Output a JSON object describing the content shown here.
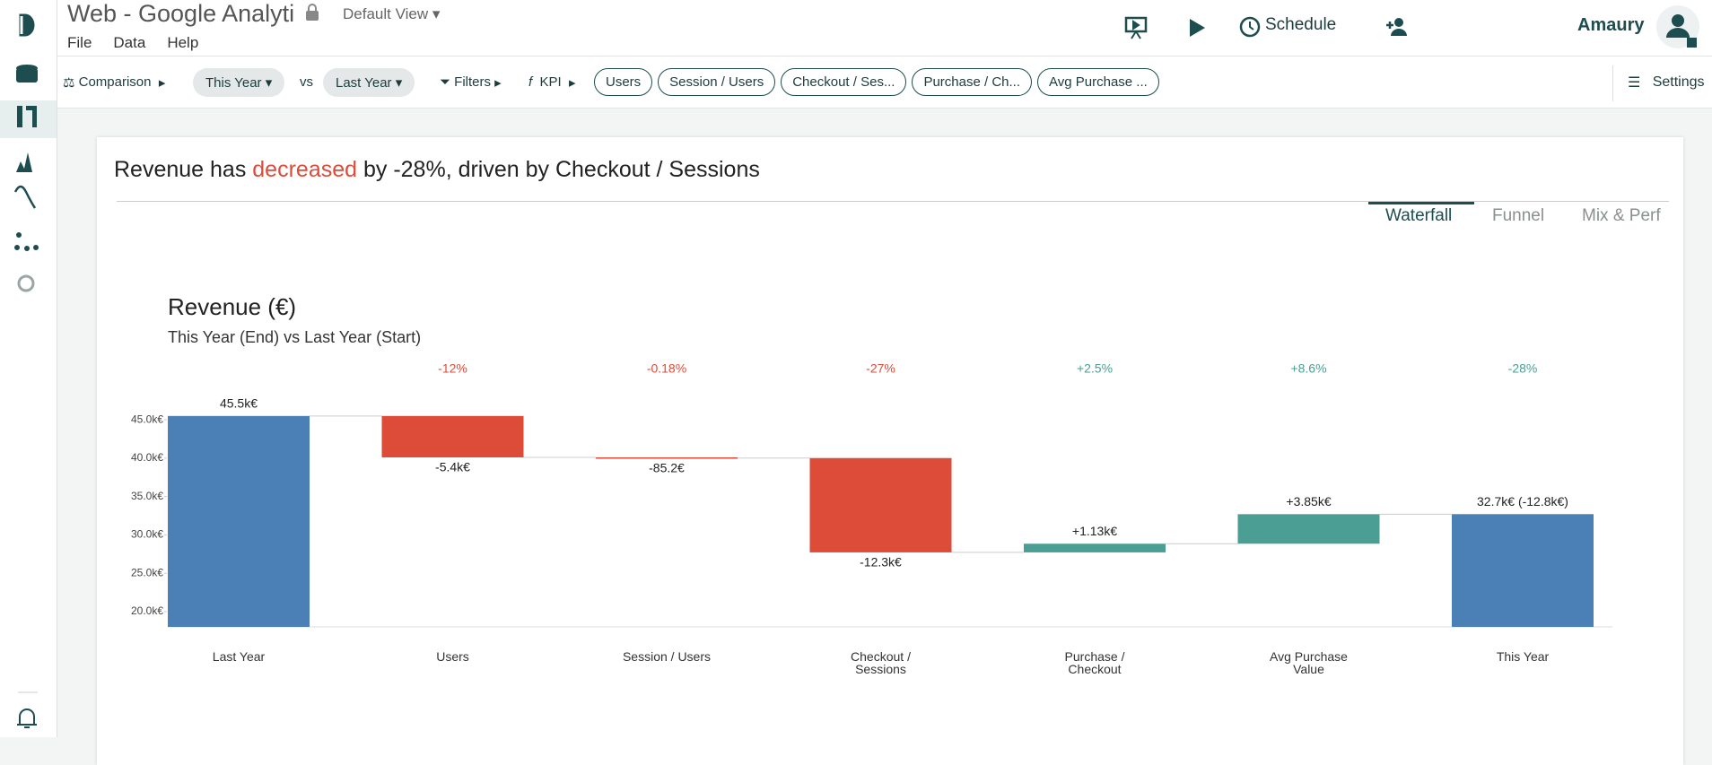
{
  "app": {
    "title": "Web - Google Analyti",
    "view": "Default View",
    "menu": [
      "File",
      "Data",
      "Help"
    ],
    "schedule": "Schedule",
    "user": "Amaury"
  },
  "toolbar": {
    "comparison": "Comparison",
    "current": "This Year",
    "vs": "vs",
    "previous": "Last Year",
    "filters": "Filters",
    "kpi": "KPI",
    "kpis": [
      "Users",
      "Session / Users",
      "Checkout / Ses...",
      "Purchase / Ch...",
      "Avg Purchase ..."
    ],
    "settings": "Settings"
  },
  "insight": {
    "prefix": "Revenue has ",
    "highlight": "decreased",
    "suffix": " by -28%, driven by Checkout / Sessions"
  },
  "tabs": {
    "items": [
      "Waterfall",
      "Funnel",
      "Mix & Perf"
    ],
    "active": 0
  },
  "chart_data": {
    "type": "waterfall",
    "title": "Revenue (€)",
    "subtitle": "This Year (End) vs Last Year (Start)",
    "categories": [
      "Last Year",
      "Users",
      "Session / Users",
      "Checkout / Sessions",
      "Purchase / Checkout",
      "Avg Purchase Value",
      "This Year"
    ],
    "values": [
      45500,
      -5400,
      -85.2,
      -12300,
      1130,
      3850,
      32700
    ],
    "value_labels": [
      "45.5k€",
      "-5.4k€",
      "-85.2€",
      "-12.3k€",
      "+1.13k€",
      "+3.85k€",
      "32.7k€ (-12.8k€)"
    ],
    "change_labels": [
      null,
      "-12%",
      "-0.18%",
      "-27%",
      "+2.5%",
      "+8.6%",
      "-28%"
    ],
    "ylim": [
      18000,
      47000
    ],
    "yticks": [
      {
        "value": 20000,
        "label": "20.0k€"
      },
      {
        "value": 25000,
        "label": "25.0k€"
      },
      {
        "value": 30000,
        "label": "30.0k€"
      },
      {
        "value": 35000,
        "label": "35.0k€"
      },
      {
        "value": 40000,
        "label": "40.0k€"
      },
      {
        "value": 45000,
        "label": "45.0k€"
      }
    ],
    "total_color": "#4a80b6",
    "increase_color": "#4a9e94",
    "decrease_color": "#dd4b39"
  }
}
